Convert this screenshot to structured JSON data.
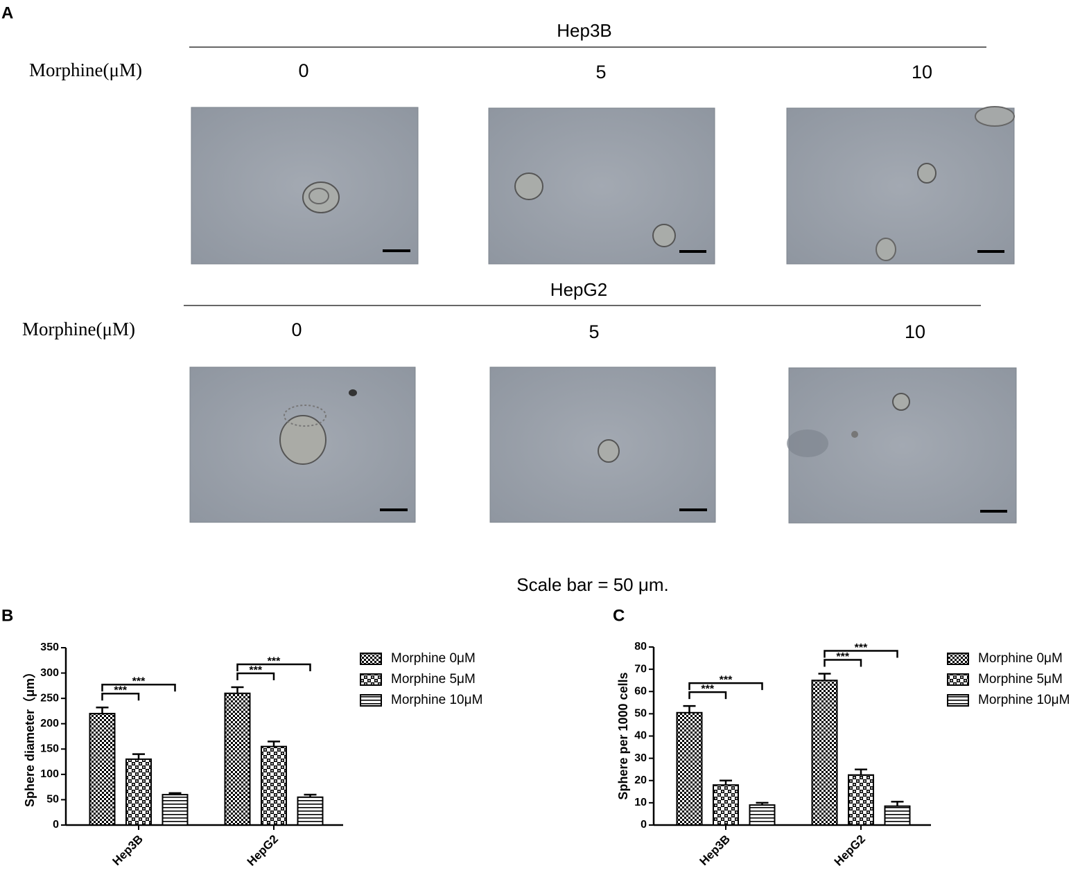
{
  "panel_labels": [
    "A",
    "B",
    "C"
  ],
  "panel_a": {
    "rows": [
      {
        "title": "Hep3B",
        "dose_label": "Morphine(μM)",
        "doses": [
          "0",
          "5",
          "10"
        ]
      },
      {
        "title": "HepG2",
        "dose_label": "Morphine(μM)",
        "doses": [
          "0",
          "5",
          "10"
        ]
      }
    ],
    "caption": "Scale bar = 50 μm."
  },
  "chart_data": [
    {
      "type": "bar",
      "y_label": "Sphere diameter（μm）",
      "categories": [
        "Hep3B",
        "HepG2"
      ],
      "series": [
        {
          "name": "Morphine 0μM",
          "color": "#000000",
          "pattern": "fine-check",
          "values": [
            220,
            260
          ],
          "errors": [
            12,
            12
          ]
        },
        {
          "name": "Morphine 5μM",
          "color": "#000000",
          "pattern": "coarse-check",
          "values": [
            130,
            155
          ],
          "errors": [
            10,
            10
          ]
        },
        {
          "name": "Morphine 10μM",
          "color": "#000000",
          "pattern": "horizontal-lines",
          "values": [
            60,
            55
          ],
          "errors": [
            3,
            5
          ]
        }
      ],
      "ylim": [
        0,
        350
      ],
      "yticks": [
        0,
        50,
        100,
        150,
        200,
        250,
        300,
        350
      ],
      "annotations": [
        "***",
        "***",
        "***",
        "***"
      ]
    },
    {
      "type": "bar",
      "y_label": "Sphere per 1000 cells",
      "categories": [
        "Hep3B",
        "HepG2"
      ],
      "series": [
        {
          "name": "Morphine 0μM",
          "color": "#000000",
          "pattern": "fine-check",
          "values": [
            50.5,
            65
          ],
          "errors": [
            3,
            3
          ]
        },
        {
          "name": "Morphine 5μM",
          "color": "#000000",
          "pattern": "coarse-check",
          "values": [
            18,
            22.5
          ],
          "errors": [
            2,
            2.5
          ]
        },
        {
          "name": "Morphine 10μM",
          "color": "#000000",
          "pattern": "horizontal-lines",
          "values": [
            9,
            8.5
          ],
          "errors": [
            1,
            2
          ]
        }
      ],
      "ylim": [
        0,
        80
      ],
      "yticks": [
        0,
        10,
        20,
        30,
        40,
        50,
        60,
        70,
        80
      ],
      "annotations": [
        "***",
        "***",
        "***",
        "***"
      ]
    }
  ]
}
